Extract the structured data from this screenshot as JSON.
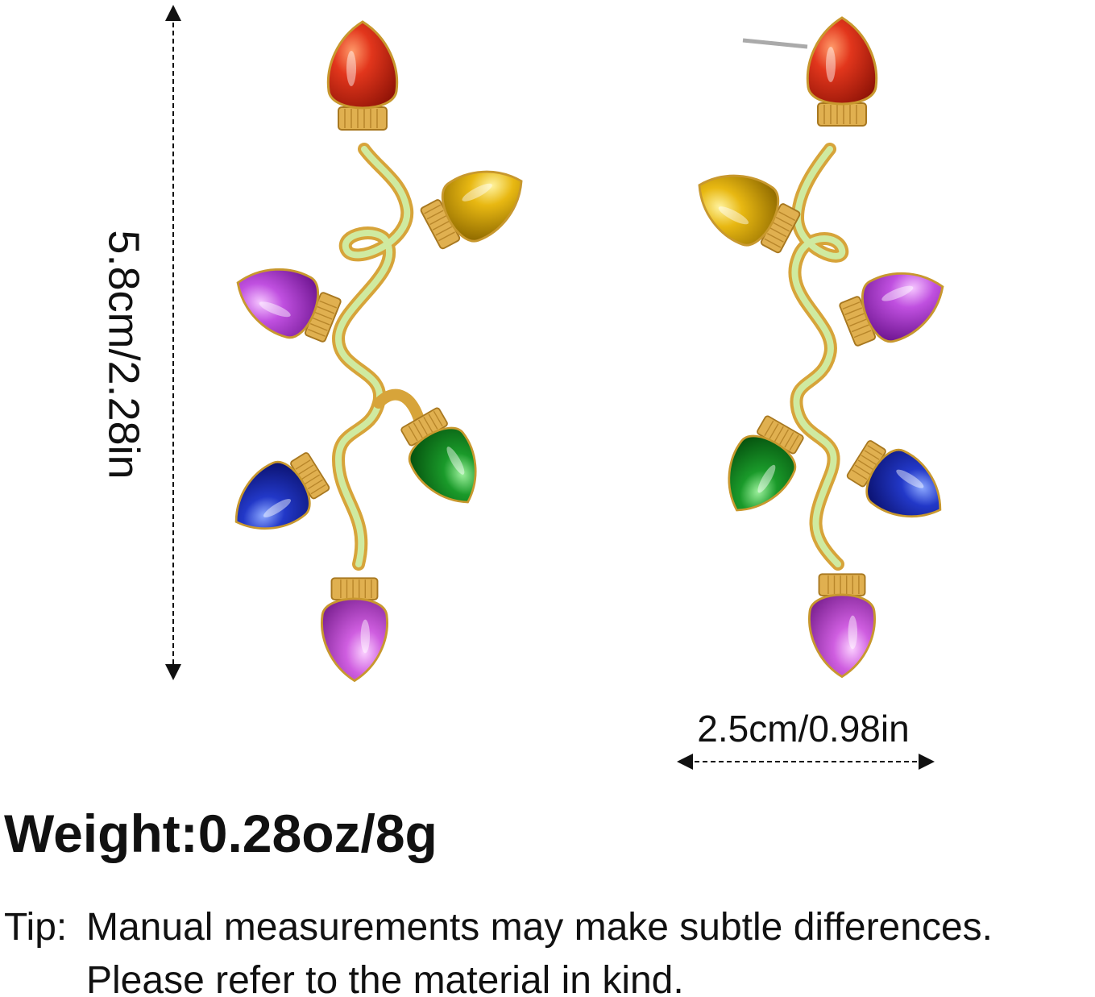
{
  "dimensions": {
    "height": "5.8cm/2.28in",
    "width": "2.5cm/0.98in"
  },
  "weight": "Weight:0.28oz/8g",
  "tip": {
    "label": "Tip:",
    "lines": [
      "Manual measurements may make subtle differences.",
      "Please refer to the material in kind."
    ]
  }
}
